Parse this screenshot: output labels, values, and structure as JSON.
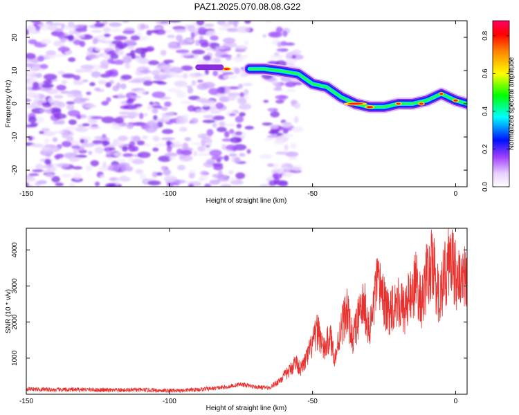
{
  "title": "PAZ1.2025.070.08.08.G22",
  "chart_data": [
    {
      "type": "heatmap",
      "xlabel": "Height of straight line (km)",
      "ylabel": "Frequency (Hz)",
      "xlim": [
        -150,
        4
      ],
      "ylim": [
        -25,
        25
      ],
      "xticks": [
        -150,
        -100,
        -50,
        0
      ],
      "yticks": [
        -20,
        -10,
        0,
        10,
        20
      ],
      "colorbar": {
        "label": "Normalized spectral amplitude",
        "range": [
          0,
          0.88
        ],
        "ticks": [
          "0.0",
          "0.2",
          "0.4",
          "0.6",
          "0.8"
        ],
        "colors": [
          "#ffffff",
          "#e8d0ff",
          "#a040ff",
          "#6000f0",
          "#0010ff",
          "#00ffff",
          "#00ff00",
          "#ffff00",
          "#ff8000",
          "#ff0000",
          "#ff0066"
        ]
      },
      "ridge": {
        "description_points_km": [
          -90,
          -80,
          -75,
          -67,
          -62,
          -55,
          -50,
          -45,
          -40,
          -35,
          -30,
          -25,
          -20,
          -15,
          -10,
          -5,
          0,
          4
        ],
        "frequency_hz": [
          11,
          11,
          10.5,
          10.5,
          10,
          9,
          6,
          5,
          2,
          0,
          -1,
          -1,
          0,
          0,
          1,
          3,
          1,
          0
        ]
      }
    },
    {
      "type": "line",
      "xlabel": "Height of straight line (km)",
      "ylabel": "SNR (10 * v/v)",
      "xlim": [
        -150,
        4
      ],
      "ylim": [
        0,
        4600
      ],
      "xticks": [
        -150,
        -100,
        -50,
        0
      ],
      "yticks": [
        1000,
        2000,
        3000,
        4000
      ],
      "line_color": "#e8322f",
      "series": [
        {
          "x": [
            -150,
            -140,
            -130,
            -120,
            -110,
            -100,
            -95,
            -90,
            -85,
            -80,
            -75,
            -70,
            -65,
            -62,
            -60,
            -58,
            -56,
            -54,
            -52,
            -50,
            -48,
            -46,
            -44,
            -42,
            -40,
            -38,
            -36,
            -34,
            -32,
            -30,
            -28,
            -26,
            -24,
            -22,
            -20,
            -18,
            -16,
            -14,
            -12,
            -10,
            -8,
            -6,
            -4,
            -2,
            0,
            2,
            4
          ],
          "values": [
            150,
            120,
            130,
            110,
            120,
            100,
            110,
            130,
            160,
            200,
            280,
            200,
            180,
            350,
            500,
            650,
            900,
            700,
            1000,
            1400,
            1800,
            1200,
            1600,
            1000,
            1900,
            2300,
            1500,
            2100,
            2500,
            1700,
            2900,
            3000,
            2200,
            2500,
            2600,
            2300,
            2700,
            3100,
            2500,
            3300,
            3600,
            2700,
            3200,
            3800,
            3400,
            2900,
            3500
          ]
        }
      ]
    }
  ]
}
